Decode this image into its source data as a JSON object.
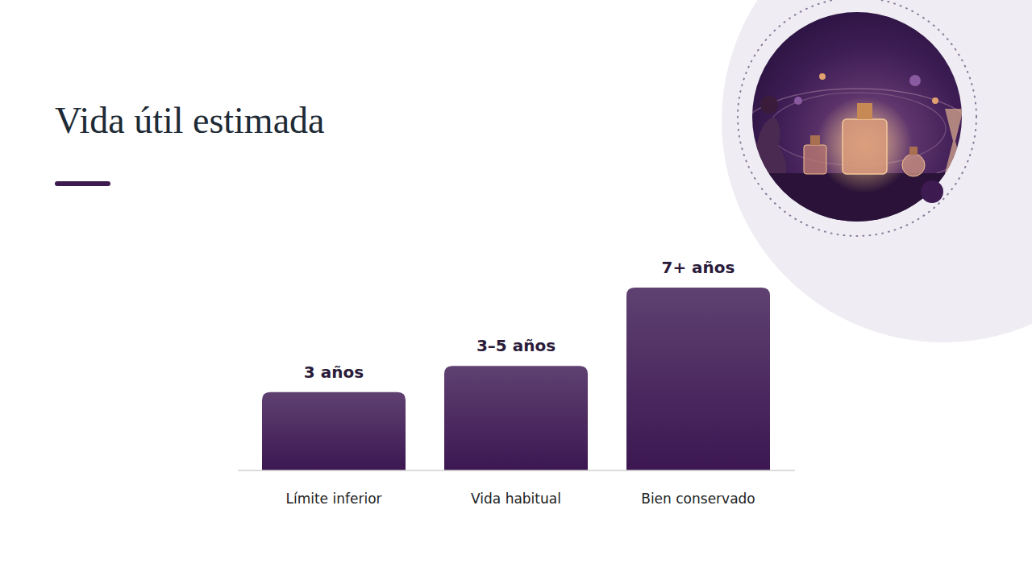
{
  "chart_data": {
    "type": "bar",
    "title": "Vida útil estimada",
    "categories": [
      "Límite inferior",
      "Vida habitual",
      "Bien conservado"
    ],
    "values": [
      3,
      4,
      7
    ],
    "value_labels": [
      "3 años",
      "3–5 años",
      "7+ años"
    ],
    "color": "#3c1752",
    "ylim": [
      0,
      7
    ],
    "data_labels": true,
    "tick_labels": "x"
  }
}
